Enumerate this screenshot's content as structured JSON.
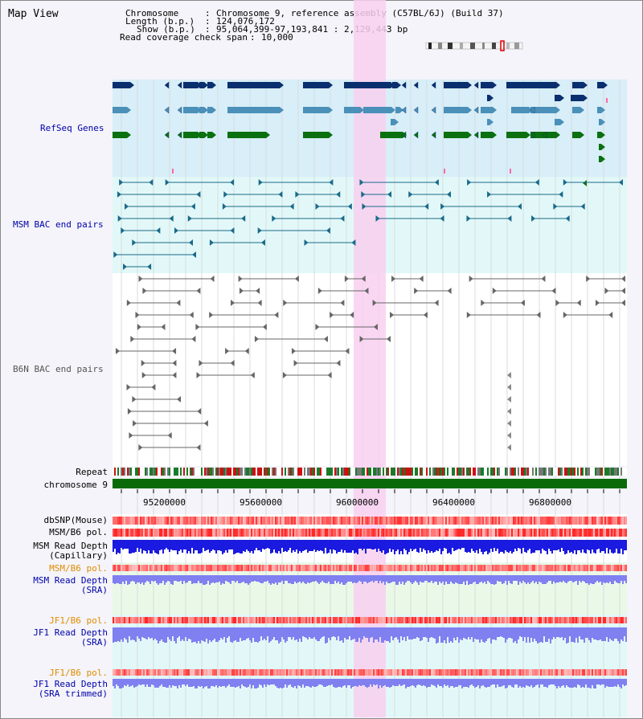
{
  "title": "Map View",
  "info": {
    "chromosome_key": "Chromosome",
    "chromosome_val": "Chromosome 9, reference assembly (C57BL/6J) (Build 37)",
    "length_key": "Length (b.p.)",
    "length_val": "124,076,172",
    "show_key": "Show (b.p.)",
    "show_val": "95,064,399-97,193,841 : 2,129,443 bp",
    "coverage_key": "Read coverage check span",
    "coverage_val": "10,000"
  },
  "tracks": {
    "refseq": "RefSeq Genes",
    "msm_bac": "MSM BAC end pairs",
    "b6n_bac": "B6N BAC end pairs",
    "repeat": "Repeat",
    "chromosome": "chromosome 9",
    "dbsnp": "dbSNP(Mouse)",
    "msm_b6_pol1": "MSM/B6 pol.",
    "msm_depth_cap_1": "MSM Read Depth",
    "msm_depth_cap_2": "(Capillary)",
    "msm_b6_pol2": "MSM/B6 pol.",
    "msm_depth_sra_1": "MSM Read Depth",
    "msm_depth_sra_2": "(SRA)",
    "jf1_b6_pol1": "JF1/B6 pol.",
    "jf1_depth_sra_1": "JF1 Read Depth",
    "jf1_depth_sra_2": "(SRA)",
    "jf1_b6_pol2": "JF1/B6 pol.",
    "jf1_depth_trim_1": "JF1 Read Depth",
    "jf1_depth_trim_2": "(SRA trimmed)"
  },
  "axis": {
    "ticks": [
      "95200000",
      "95600000",
      "96000000",
      "96400000",
      "96800000"
    ]
  },
  "colors": {
    "refseq_bg": "#d8eef8",
    "bac_bg": "#e2f8f8",
    "highlight": "#f8d0f0",
    "gene_dark": "#0a2f6e",
    "gene_mid": "#4a90b8",
    "gene_green": "#0a7010",
    "msm_bac_line": "#1a6a8a",
    "b6n_bac_line": "#666666",
    "chromosome_bar": "#0a6a0a",
    "capillary_depth": "#1a1ae0",
    "sra_depth": "#8080f0",
    "pol_red": "#ff3030",
    "sra_bg": "#eaf8e8",
    "jf1_bg": "#e2f8f8"
  }
}
